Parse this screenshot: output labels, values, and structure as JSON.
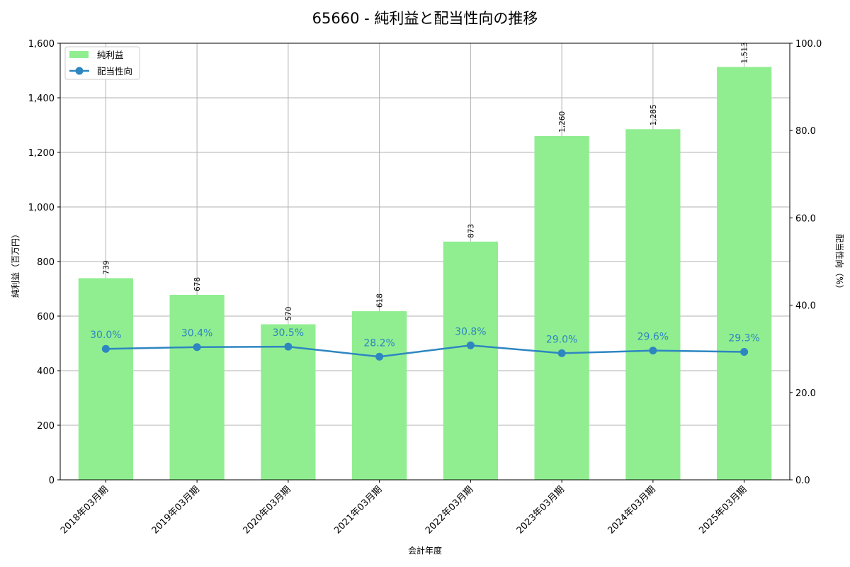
{
  "chart_data": {
    "type": "bar",
    "title": "65660 - 純利益と配当性向の推移",
    "xlabel": "会計年度",
    "ylabel": "純利益（百万円）",
    "ylabel_right": "配当性向（%）",
    "categories": [
      "2018年03月期",
      "2019年03月期",
      "2020年03月期",
      "2021年03月期",
      "2022年03月期",
      "2023年03月期",
      "2024年03月期",
      "2025年03月期"
    ],
    "series": [
      {
        "name": "純利益",
        "type": "bar",
        "axis": "left",
        "color": "#90ee90",
        "values": [
          739,
          678,
          570,
          618,
          873,
          1260,
          1285,
          1513
        ],
        "labels": [
          "739",
          "678",
          "570",
          "618",
          "873",
          "1,260",
          "1,285",
          "1,513"
        ]
      },
      {
        "name": "配当性向",
        "type": "line",
        "axis": "right",
        "color": "#2e86c1",
        "values": [
          30.0,
          30.4,
          30.5,
          28.2,
          30.8,
          29.0,
          29.6,
          29.3
        ],
        "labels": [
          "30.0%",
          "30.4%",
          "30.5%",
          "28.2%",
          "30.8%",
          "29.0%",
          "29.6%",
          "29.3%"
        ]
      }
    ],
    "ylim": [
      0,
      1600
    ],
    "ylim_right": [
      0,
      100
    ],
    "yticks": [
      "0",
      "200",
      "400",
      "600",
      "800",
      "1,000",
      "1,200",
      "1,400",
      "1,600"
    ],
    "yticks_right": [
      "0.0",
      "20.0",
      "40.0",
      "60.0",
      "80.0",
      "100.0"
    ],
    "grid": true,
    "legend_position": "upper left"
  }
}
